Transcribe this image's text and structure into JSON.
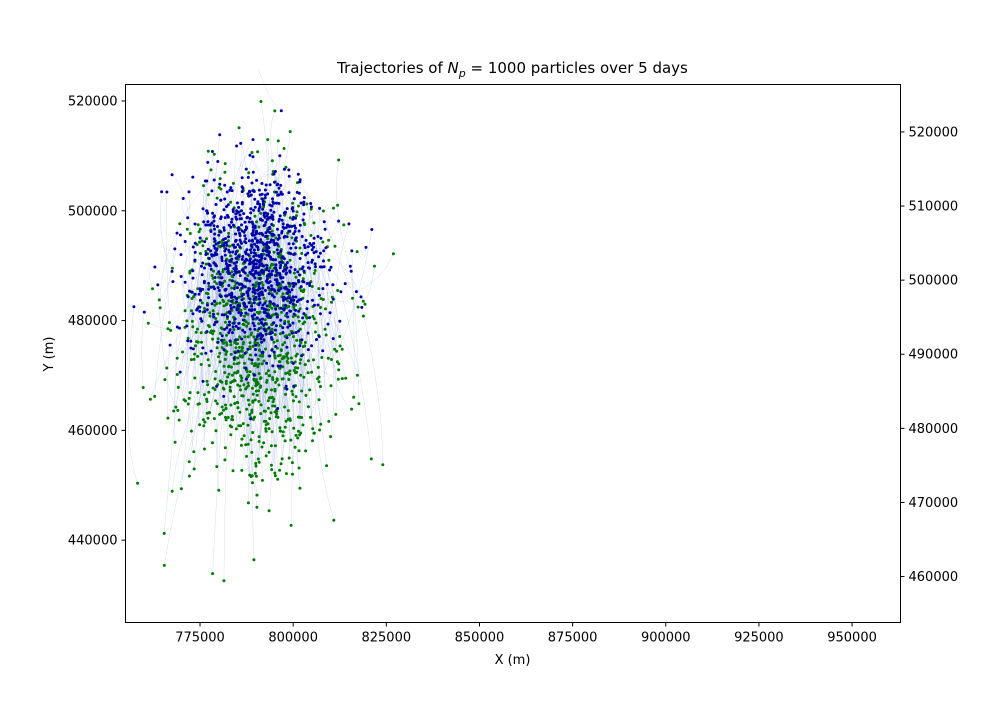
{
  "chart_data": {
    "type": "scatter",
    "title": {
      "prefix": "Trajectories of ",
      "symbol": "N",
      "subscript": "p",
      "equals_value": " = 1000",
      "suffix": " particles over 5 days"
    },
    "xlabel": "X (m)",
    "ylabel": "Y (m)",
    "xlim": [
      755000,
      963000
    ],
    "ylim": [
      425000,
      523000
    ],
    "y2lim": [
      453800,
      526400
    ],
    "xticks": [
      "775000",
      "800000",
      "825000",
      "850000",
      "875000",
      "900000",
      "925000",
      "950000"
    ],
    "xtick_values": [
      775000,
      800000,
      825000,
      850000,
      875000,
      900000,
      925000,
      950000
    ],
    "yticks": [
      "440000",
      "460000",
      "480000",
      "500000",
      "520000"
    ],
    "ytick_values": [
      440000,
      460000,
      480000,
      500000,
      520000
    ],
    "y2ticks": [
      "460000",
      "470000",
      "480000",
      "490000",
      "500000",
      "510000",
      "520000"
    ],
    "y2tick_values": [
      460000,
      470000,
      480000,
      490000,
      500000,
      510000,
      520000
    ],
    "grid": false,
    "legend": "none",
    "colors": {
      "start_points": "#0000aa",
      "end_points": "#007a00",
      "trajectory_lines": "#8aa0dc"
    },
    "series": [
      {
        "role": "start",
        "color": "#0000aa",
        "center": [
          790500,
          490000
        ],
        "spread": [
          9500,
          8500
        ],
        "count": 1000
      },
      {
        "role": "end",
        "color": "#007a00",
        "center": [
          790500,
          477000
        ],
        "spread": [
          10500,
          15000
        ],
        "count": 1000
      }
    ]
  }
}
